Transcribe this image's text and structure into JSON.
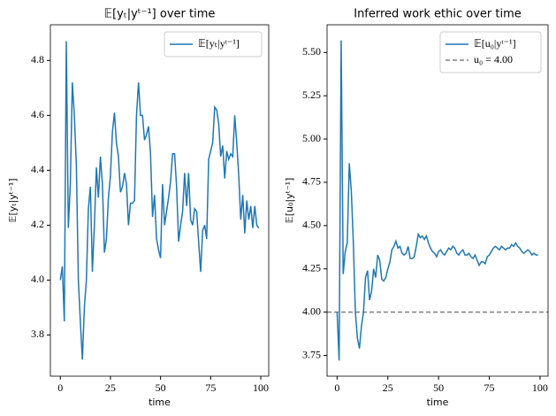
{
  "chart_data": [
    {
      "type": "line",
      "title": "𝔼[yₜ|yᵗ⁻¹] over time",
      "xlabel": "time",
      "ylabel": "𝔼[yₜ|yᵗ⁻¹]",
      "x": [
        0,
        1,
        2,
        3,
        4,
        5,
        6,
        7,
        8,
        9,
        10,
        11,
        12,
        13,
        14,
        15,
        16,
        17,
        18,
        19,
        20,
        21,
        22,
        23,
        24,
        25,
        26,
        27,
        28,
        29,
        30,
        31,
        32,
        33,
        34,
        35,
        36,
        37,
        38,
        39,
        40,
        41,
        42,
        43,
        44,
        45,
        46,
        47,
        48,
        49,
        50,
        51,
        52,
        53,
        54,
        55,
        56,
        57,
        58,
        59,
        60,
        61,
        62,
        63,
        64,
        65,
        66,
        67,
        68,
        69,
        70,
        71,
        72,
        73,
        74,
        75,
        76,
        77,
        78,
        79,
        80,
        81,
        82,
        83,
        84,
        85,
        86,
        87,
        88,
        89,
        90,
        91,
        92,
        93,
        94,
        95,
        96,
        97,
        98,
        99
      ],
      "series": [
        {
          "name": "𝔼[yₜ|yᵗ⁻¹]",
          "color": "#1f77b4",
          "values": [
            4.0,
            4.05,
            3.85,
            4.87,
            4.19,
            4.35,
            4.72,
            4.6,
            4.42,
            4.0,
            3.85,
            3.71,
            3.9,
            4.0,
            4.26,
            4.34,
            4.03,
            4.2,
            4.41,
            4.3,
            4.45,
            4.35,
            4.1,
            4.15,
            4.3,
            4.38,
            4.54,
            4.61,
            4.5,
            4.45,
            4.32,
            4.34,
            4.39,
            4.35,
            4.2,
            4.28,
            4.28,
            4.29,
            4.6,
            4.72,
            4.6,
            4.6,
            4.51,
            4.53,
            4.56,
            4.46,
            4.23,
            4.31,
            4.15,
            4.11,
            4.08,
            4.35,
            4.2,
            4.25,
            4.3,
            4.36,
            4.46,
            4.46,
            4.34,
            4.14,
            4.2,
            4.25,
            4.39,
            4.27,
            4.39,
            4.22,
            4.2,
            4.26,
            4.25,
            4.14,
            4.03,
            4.18,
            4.2,
            4.15,
            4.44,
            4.47,
            4.5,
            4.63,
            4.62,
            4.57,
            4.45,
            4.49,
            4.37,
            4.47,
            4.44,
            4.46,
            4.45,
            4.6,
            4.5,
            4.38,
            4.22,
            4.31,
            4.17,
            4.29,
            4.22,
            4.27,
            4.19,
            4.27,
            4.2,
            4.19
          ]
        }
      ],
      "xlim": [
        -4.95,
        103.95
      ],
      "ylim": [
        3.65,
        4.93
      ],
      "xticks": [
        0,
        25,
        50,
        75,
        100
      ],
      "yticks": [
        3.8,
        {
          "value": 4,
          "label": "4.0"
        },
        4.2,
        4.4,
        4.6,
        4.8
      ],
      "legend": "upper right"
    },
    {
      "type": "line",
      "title": "Inferred work ethic over time",
      "xlabel": "time",
      "ylabel": "𝔼[u₀|yᵗ⁻¹]",
      "x": [
        0,
        1,
        2,
        3,
        4,
        5,
        6,
        7,
        8,
        9,
        10,
        11,
        12,
        13,
        14,
        15,
        16,
        17,
        18,
        19,
        20,
        21,
        22,
        23,
        24,
        25,
        26,
        27,
        28,
        29,
        30,
        31,
        32,
        33,
        34,
        35,
        36,
        37,
        38,
        39,
        40,
        41,
        42,
        43,
        44,
        45,
        46,
        47,
        48,
        49,
        50,
        51,
        52,
        53,
        54,
        55,
        56,
        57,
        58,
        59,
        60,
        61,
        62,
        63,
        64,
        65,
        66,
        67,
        68,
        69,
        70,
        71,
        72,
        73,
        74,
        75,
        76,
        77,
        78,
        79,
        80,
        81,
        82,
        83,
        84,
        85,
        86,
        87,
        88,
        89,
        90,
        91,
        92,
        93,
        94,
        95,
        96,
        97,
        98,
        99
      ],
      "series": [
        {
          "name": "𝔼[u₀|yᵗ⁻¹]",
          "color": "#1f77b4",
          "values": [
            4.0,
            3.72,
            5.57,
            4.22,
            4.35,
            4.4,
            4.86,
            4.7,
            4.4,
            4.0,
            3.85,
            3.79,
            3.92,
            4.0,
            4.2,
            4.24,
            4.07,
            4.12,
            4.25,
            4.2,
            4.33,
            4.3,
            4.19,
            4.18,
            4.2,
            4.25,
            4.29,
            4.36,
            4.38,
            4.41,
            4.37,
            4.38,
            4.34,
            4.33,
            4.34,
            4.38,
            4.31,
            4.31,
            4.32,
            4.38,
            4.45,
            4.43,
            4.44,
            4.42,
            4.44,
            4.4,
            4.37,
            4.35,
            4.34,
            4.32,
            4.35,
            4.36,
            4.34,
            4.33,
            4.35,
            4.37,
            4.36,
            4.38,
            4.37,
            4.34,
            4.33,
            4.35,
            4.36,
            4.33,
            4.33,
            4.34,
            4.32,
            4.31,
            4.33,
            4.3,
            4.27,
            4.29,
            4.29,
            4.28,
            4.32,
            4.33,
            4.35,
            4.37,
            4.38,
            4.37,
            4.36,
            4.38,
            4.37,
            4.36,
            4.37,
            4.37,
            4.39,
            4.38,
            4.4,
            4.38,
            4.37,
            4.35,
            4.34,
            4.35,
            4.36,
            4.35,
            4.33,
            4.34,
            4.33,
            4.33
          ]
        }
      ],
      "hlines": [
        {
          "name": "u₀ = 4.00",
          "value": 4.0,
          "color": "#808080"
        }
      ],
      "xlim": [
        -4.95,
        103.95
      ],
      "ylim": [
        3.63,
        5.66
      ],
      "xticks": [
        0,
        25,
        50,
        75,
        100
      ],
      "yticks": [
        3.75,
        {
          "value": 4,
          "label": "4.00"
        },
        4.25,
        {
          "value": 4.5,
          "label": "4.50"
        },
        4.75,
        {
          "value": 5,
          "label": "5.00"
        },
        5.25,
        {
          "value": 5.5,
          "label": "5.50"
        }
      ],
      "legend": "upper right"
    }
  ]
}
